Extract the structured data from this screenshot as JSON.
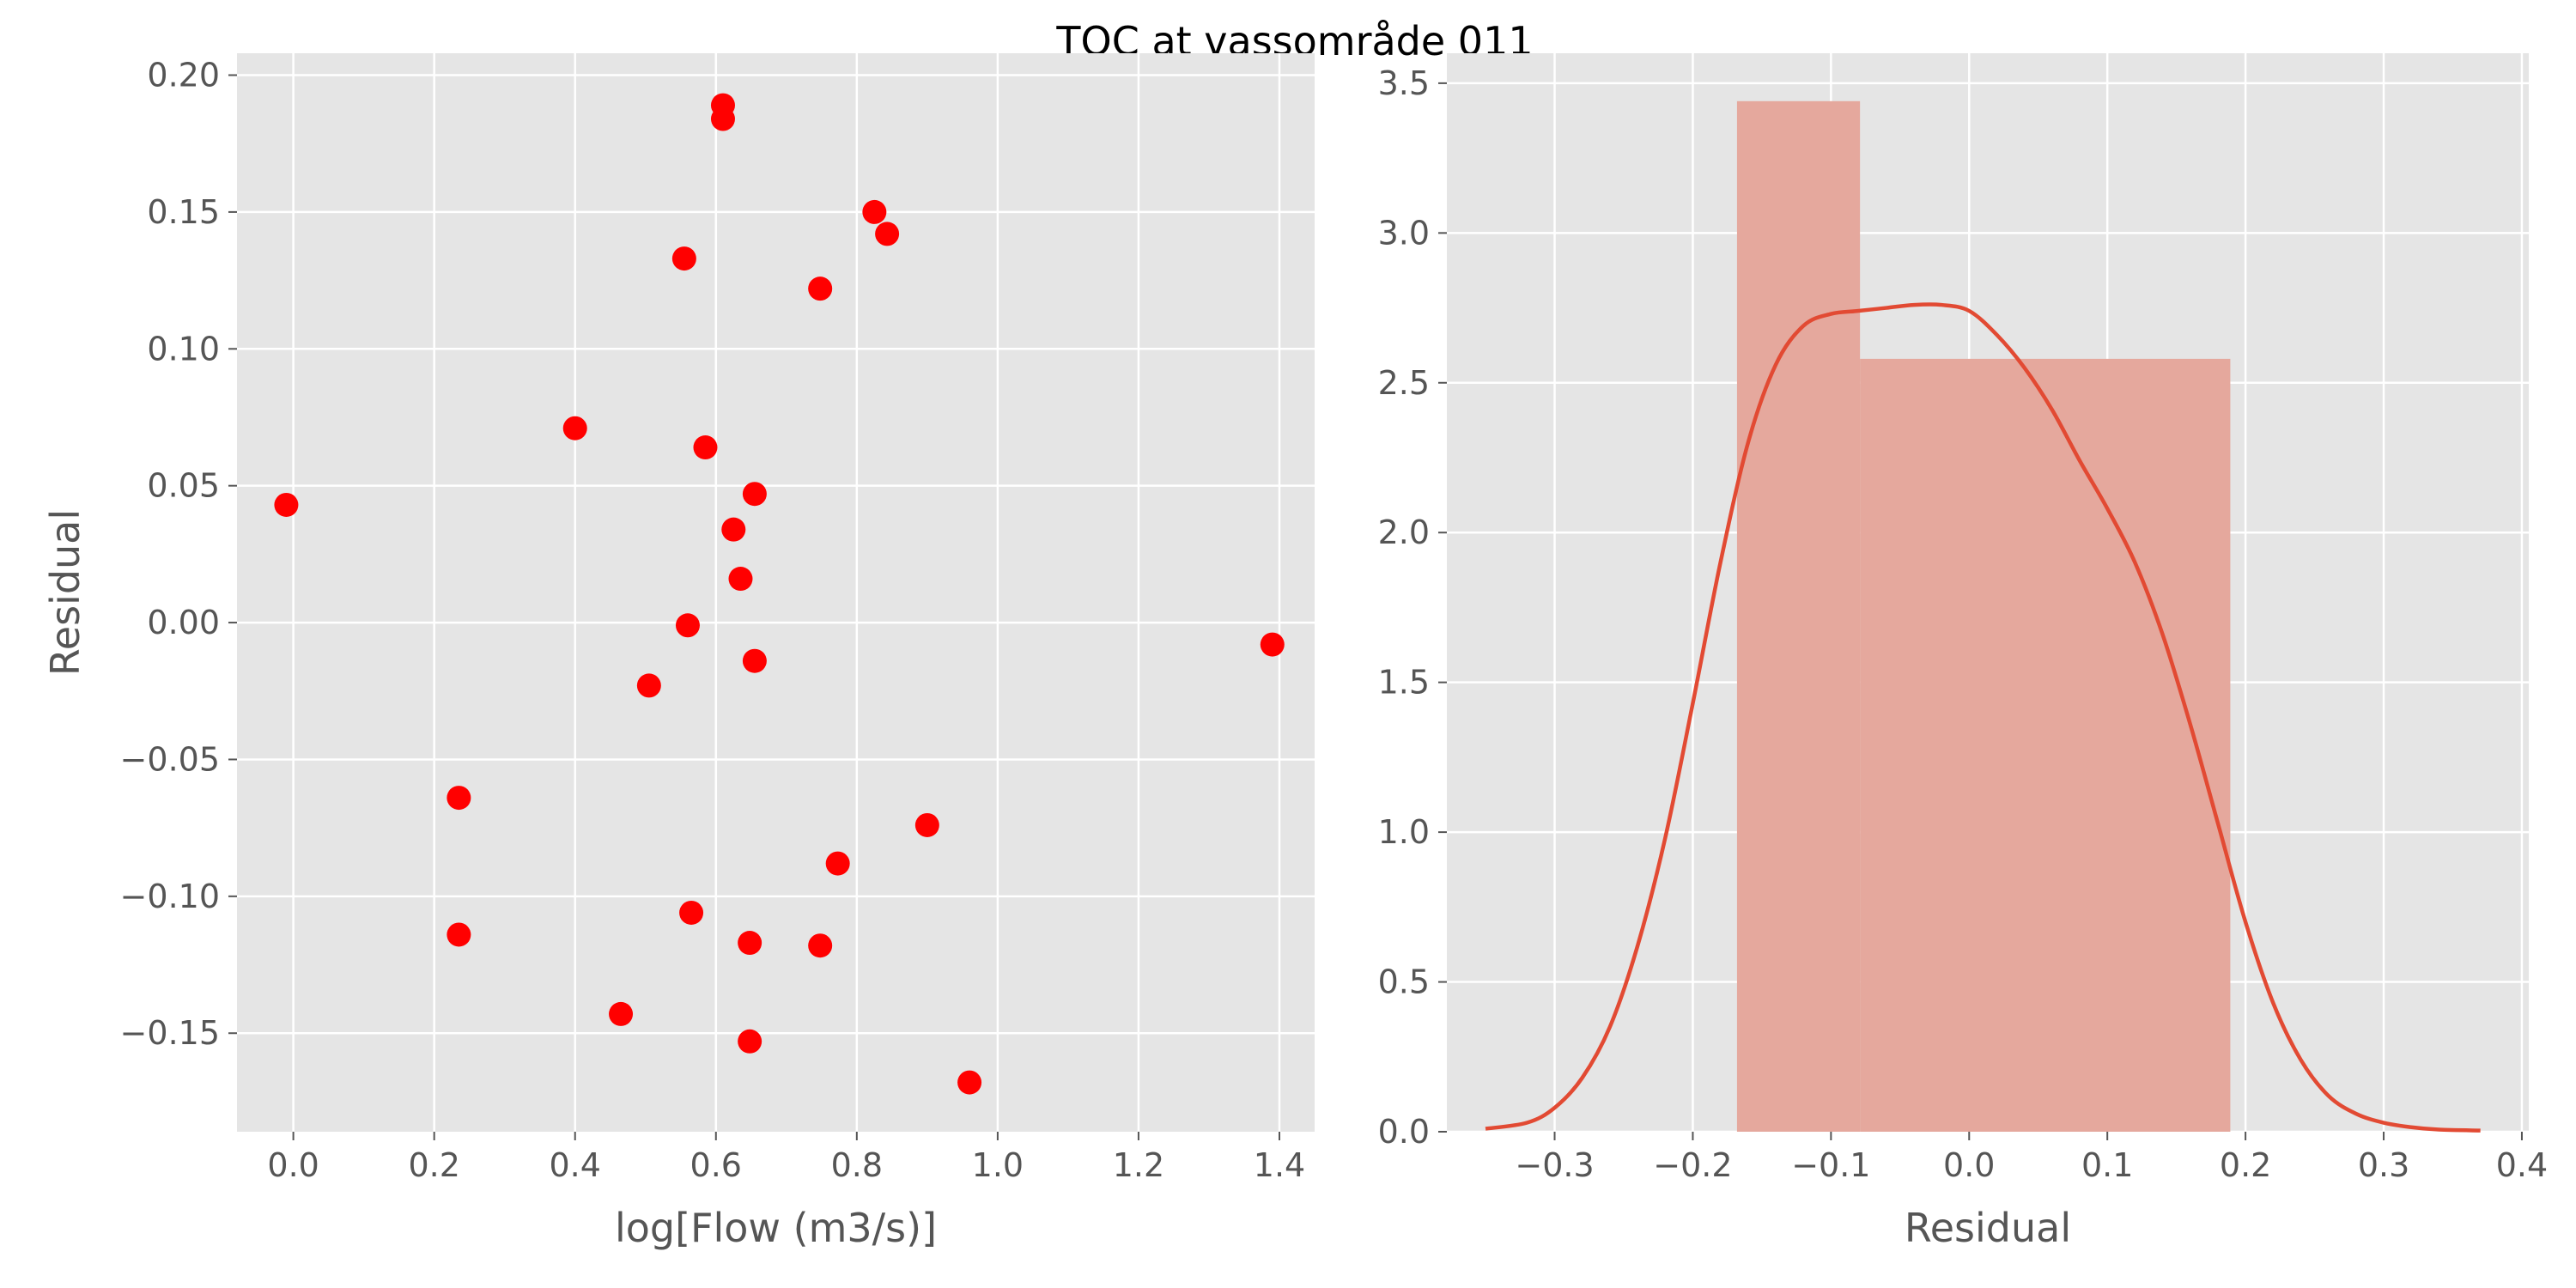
{
  "suptitle": "TOC at vassområde 011",
  "chart_data": [
    {
      "type": "scatter",
      "title": "",
      "xlabel": "log[Flow (m3/s)]",
      "ylabel": "Residual",
      "xlim": [
        -0.08,
        1.45
      ],
      "ylim": [
        -0.186,
        0.208
      ],
      "xticks": [
        0.0,
        0.2,
        0.4,
        0.6,
        0.8,
        1.0,
        1.2,
        1.4
      ],
      "xtick_labels": [
        "0.0",
        "0.2",
        "0.4",
        "0.6",
        "0.8",
        "1.0",
        "1.2",
        "1.4"
      ],
      "yticks": [
        -0.15,
        -0.1,
        -0.05,
        0.0,
        0.05,
        0.1,
        0.15,
        0.2
      ],
      "ytick_labels": [
        "−0.15",
        "−0.10",
        "−0.05",
        "0.00",
        "0.05",
        "0.10",
        "0.15",
        "0.20"
      ],
      "grid": true,
      "point_color": "#ff0000",
      "points": [
        {
          "x": -0.01,
          "y": 0.043
        },
        {
          "x": 0.235,
          "y": -0.064
        },
        {
          "x": 0.235,
          "y": -0.114
        },
        {
          "x": 0.4,
          "y": 0.071
        },
        {
          "x": 0.465,
          "y": -0.143
        },
        {
          "x": 0.505,
          "y": -0.023
        },
        {
          "x": 0.555,
          "y": 0.133
        },
        {
          "x": 0.56,
          "y": -0.001
        },
        {
          "x": 0.565,
          "y": -0.106
        },
        {
          "x": 0.585,
          "y": 0.064
        },
        {
          "x": 0.61,
          "y": 0.189
        },
        {
          "x": 0.61,
          "y": 0.184
        },
        {
          "x": 0.625,
          "y": 0.034
        },
        {
          "x": 0.635,
          "y": 0.016
        },
        {
          "x": 0.648,
          "y": -0.117
        },
        {
          "x": 0.648,
          "y": -0.153
        },
        {
          "x": 0.655,
          "y": 0.047
        },
        {
          "x": 0.655,
          "y": -0.014
        },
        {
          "x": 0.748,
          "y": 0.122
        },
        {
          "x": 0.748,
          "y": -0.118
        },
        {
          "x": 0.773,
          "y": -0.088
        },
        {
          "x": 0.825,
          "y": 0.15
        },
        {
          "x": 0.843,
          "y": 0.142
        },
        {
          "x": 0.9,
          "y": -0.074
        },
        {
          "x": 0.96,
          "y": -0.168
        },
        {
          "x": 1.39,
          "y": -0.008
        }
      ]
    },
    {
      "type": "histogram",
      "title": "",
      "xlabel": "Residual",
      "ylabel": "",
      "xlim": [
        -0.378,
        0.405
      ],
      "ylim": [
        0,
        3.6
      ],
      "xticks": [
        -0.3,
        -0.2,
        -0.1,
        0.0,
        0.1,
        0.2,
        0.3,
        0.4
      ],
      "xtick_labels": [
        "−0.3",
        "−0.2",
        "−0.1",
        "0.0",
        "0.1",
        "0.2",
        "0.3",
        "0.4"
      ],
      "yticks": [
        0.0,
        0.5,
        1.0,
        1.5,
        2.0,
        2.5,
        3.0,
        3.5
      ],
      "ytick_labels": [
        "0.0",
        "0.5",
        "1.0",
        "1.5",
        "2.0",
        "2.5",
        "3.0",
        "3.5"
      ],
      "grid": true,
      "bar_color": "#e5a89d",
      "line_color": "#e24a33",
      "bins": [
        {
          "x0": -0.168,
          "x1": -0.079,
          "height": 3.44
        },
        {
          "x0": -0.079,
          "x1": 0.189,
          "height": 2.58
        }
      ],
      "kde": {
        "x": [
          -0.35,
          -0.32,
          -0.3,
          -0.28,
          -0.26,
          -0.24,
          -0.22,
          -0.2,
          -0.18,
          -0.16,
          -0.14,
          -0.12,
          -0.1,
          -0.08,
          -0.06,
          -0.04,
          -0.02,
          0.0,
          0.02,
          0.04,
          0.06,
          0.08,
          0.1,
          0.12,
          0.14,
          0.16,
          0.18,
          0.2,
          0.22,
          0.24,
          0.26,
          0.28,
          0.3,
          0.32,
          0.34,
          0.37
        ],
        "y": [
          0.01,
          0.03,
          0.08,
          0.18,
          0.35,
          0.62,
          0.98,
          1.43,
          1.9,
          2.3,
          2.56,
          2.69,
          2.73,
          2.74,
          2.75,
          2.76,
          2.76,
          2.74,
          2.66,
          2.55,
          2.41,
          2.24,
          2.08,
          1.9,
          1.66,
          1.36,
          1.03,
          0.7,
          0.43,
          0.24,
          0.12,
          0.06,
          0.03,
          0.015,
          0.007,
          0.004
        ]
      }
    }
  ]
}
